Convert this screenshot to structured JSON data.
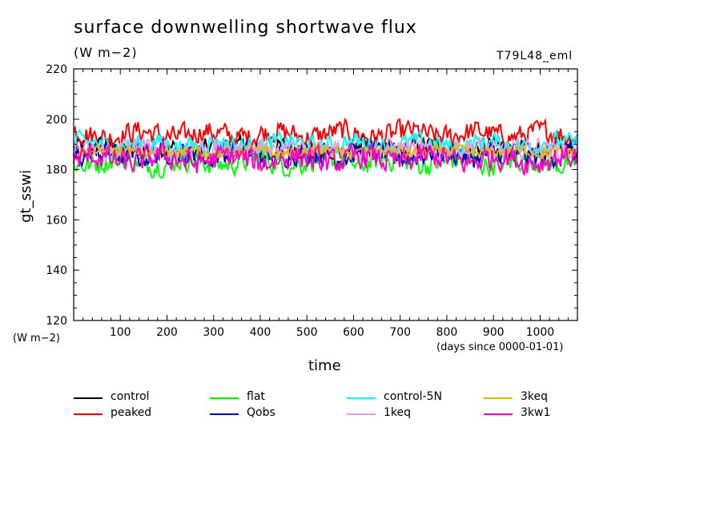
{
  "header": {
    "title": "surface downwelling shortwave flux",
    "units": "(W m−2)",
    "run": "T79L48_eml"
  },
  "axes": {
    "ylabel": "gt_sswi",
    "yunit": "(W m−2)",
    "xlabel": "time",
    "xunit": "(days since 0000-01-01)"
  },
  "chart_data": {
    "type": "line",
    "xlim": [
      0,
      1080
    ],
    "ylim": [
      120,
      220
    ],
    "xticks": [
      100,
      200,
      300,
      400,
      500,
      600,
      700,
      800,
      900,
      1000
    ],
    "yticks": [
      120,
      140,
      160,
      180,
      200,
      220
    ],
    "grid": false,
    "legend_placement": "bottom",
    "series": [
      {
        "name": "control",
        "color": "#000000",
        "mean": 188,
        "amplitude": 4
      },
      {
        "name": "peaked",
        "color": "#ff0000",
        "mean": 194,
        "amplitude": 4
      },
      {
        "name": "flat",
        "color": "#00ff00",
        "mean": 183,
        "amplitude": 4
      },
      {
        "name": "Qobs",
        "color": "#0000c8",
        "mean": 186,
        "amplitude": 4
      },
      {
        "name": "control-5N",
        "color": "#00ffff",
        "mean": 190,
        "amplitude": 3.5
      },
      {
        "name": "1keq",
        "color": "#e6a0e6",
        "mean": 188,
        "amplitude": 3.5
      },
      {
        "name": "3keq",
        "color": "#f0b400",
        "mean": 187,
        "amplitude": 2
      },
      {
        "name": "3kw1",
        "color": "#ff00c8",
        "mean": 184,
        "amplitude": 4.5
      }
    ]
  }
}
